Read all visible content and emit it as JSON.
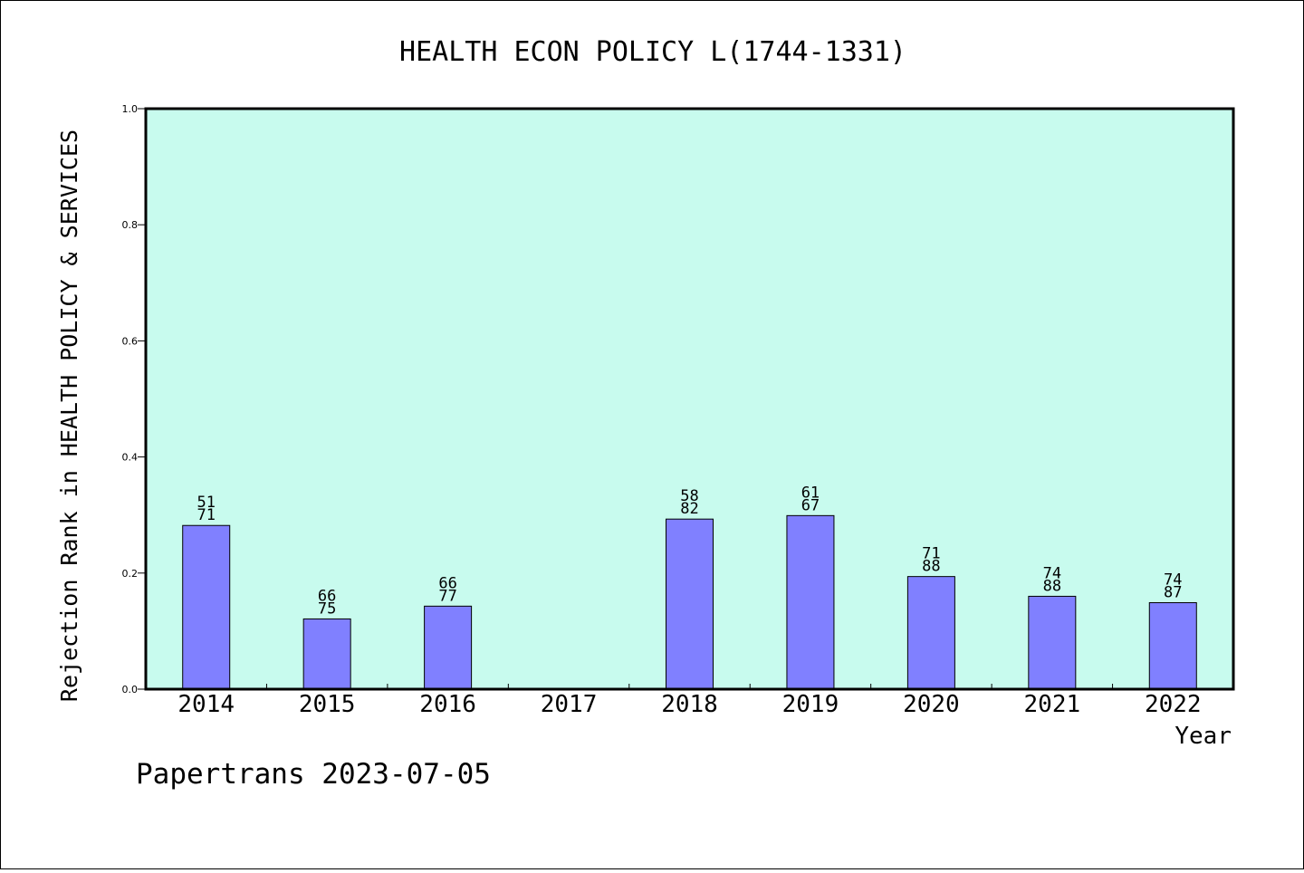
{
  "chart_data": {
    "type": "bar",
    "title": "HEALTH ECON POLICY L(1744-1331)",
    "xlabel": "Year",
    "ylabel": "Rejection Rank in HEALTH POLICY & SERVICES",
    "ylim": [
      0,
      1.0
    ],
    "yticks": [
      "0.0",
      "0.2",
      "0.4",
      "0.6",
      "0.8",
      "1.0"
    ],
    "categories": [
      "2014",
      "2015",
      "2016",
      "2017",
      "2018",
      "2019",
      "2020",
      "2021",
      "2022"
    ],
    "values": [
      0.282,
      0.121,
      0.143,
      null,
      0.293,
      0.299,
      0.194,
      0.16,
      0.149
    ],
    "labels": [
      [
        "51",
        "71"
      ],
      [
        "66",
        "75"
      ],
      [
        "66",
        "77"
      ],
      null,
      [
        "58",
        "82"
      ],
      [
        "61",
        "67"
      ],
      [
        "71",
        "88"
      ],
      [
        "74",
        "88"
      ],
      [
        "74",
        "87"
      ]
    ],
    "colors": {
      "plot_background": "#c8fbee",
      "bar_fill": "#8080ff",
      "bar_stroke": "#000000"
    },
    "grid": false
  },
  "footer": "Papertrans 2023-07-05"
}
